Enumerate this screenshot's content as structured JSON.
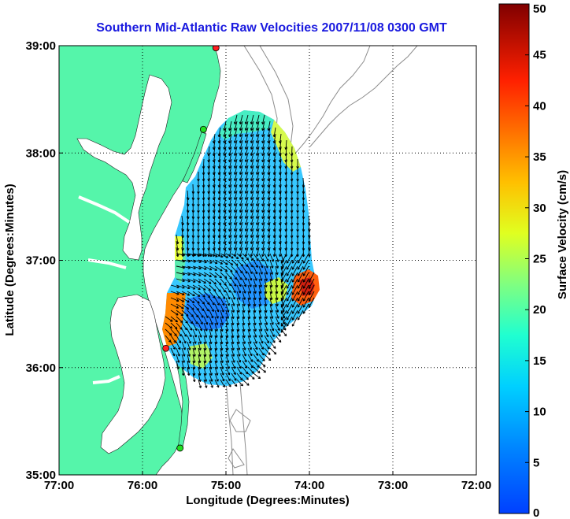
{
  "title": "Southern Mid-Atlantic Raw Velocities 2007/11/08 0300 GMT",
  "xlabel": "Longitude (Degrees:Minutes)",
  "ylabel": "Latitude (Degrees:Minutes)",
  "colorbar_label": "Surface Velocity (cm/s)",
  "colors": {
    "title": "#1a1adf",
    "land": "#55f5aa",
    "station": "#ff2020",
    "station_green": "#20e020",
    "bathymetry": "#8c8c8c",
    "grid": "#000000"
  },
  "chart_data": {
    "type": "heatmap",
    "title": "Southern Mid-Atlantic Raw Velocities 2007/11/08 0300 GMT",
    "xlabel": "Longitude (Degrees:Minutes)",
    "ylabel": "Latitude (Degrees:Minutes)",
    "xlim": [
      -77,
      -72
    ],
    "ylim": [
      35,
      39
    ],
    "x_ticks": [
      {
        "value": -77,
        "label": "77:00"
      },
      {
        "value": -76,
        "label": "76:00"
      },
      {
        "value": -75,
        "label": "75:00"
      },
      {
        "value": -74,
        "label": "74:00"
      },
      {
        "value": -73,
        "label": "73:00"
      },
      {
        "value": -72,
        "label": "72:00"
      }
    ],
    "y_ticks": [
      {
        "value": 35,
        "label": "35:00"
      },
      {
        "value": 36,
        "label": "36:00"
      },
      {
        "value": 37,
        "label": "37:00"
      },
      {
        "value": 38,
        "label": "38:00"
      },
      {
        "value": 39,
        "label": "39:00"
      }
    ],
    "grid": true,
    "grid_style": "dotted",
    "colorbar": {
      "label": "Surface Velocity (cm/s)",
      "range": [
        0,
        50
      ],
      "ticks": [
        0,
        5,
        10,
        15,
        20,
        25,
        30,
        35,
        40,
        45,
        50
      ],
      "colormap": "jet"
    },
    "stations": [
      {
        "lon": -75.12,
        "lat": 38.98,
        "color": "red"
      },
      {
        "lon": -75.27,
        "lat": 38.22,
        "color": "green"
      },
      {
        "lon": -75.72,
        "lat": 36.18,
        "color": "red"
      },
      {
        "lon": -75.55,
        "lat": 35.25,
        "color": "green"
      }
    ]
  }
}
